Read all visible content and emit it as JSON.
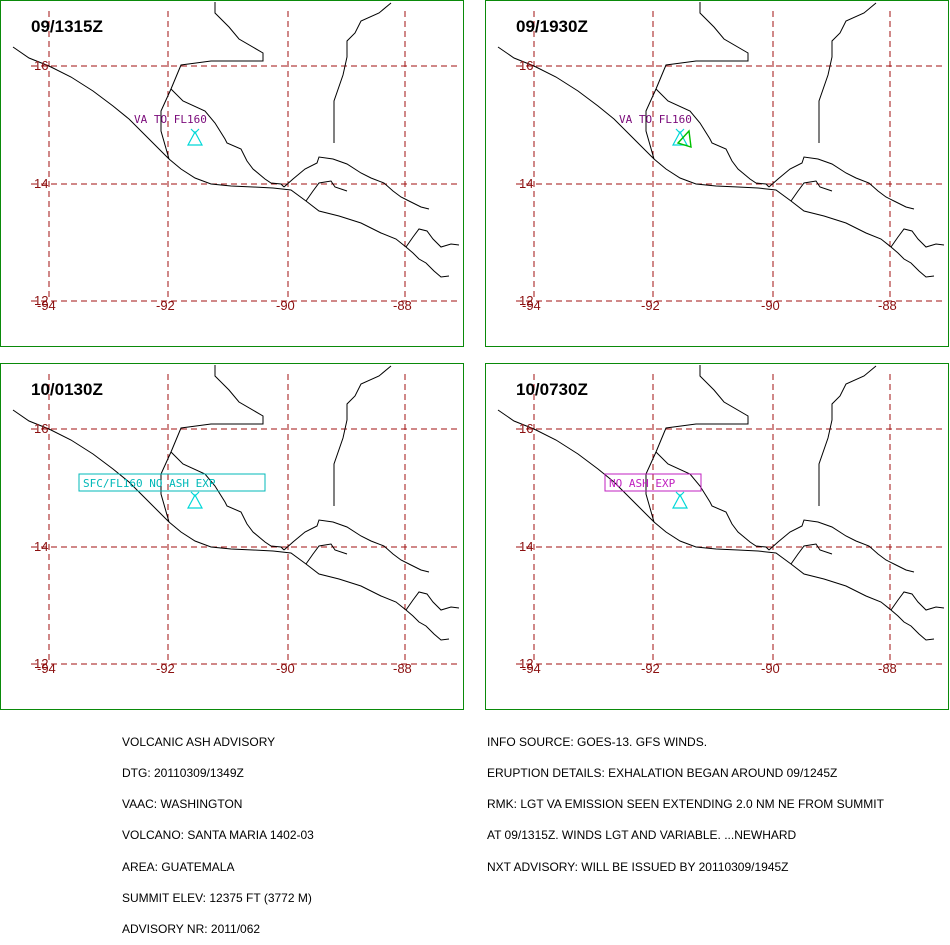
{
  "colors": {
    "frame": "#0a8a0a",
    "grid": "#a01010",
    "tick": "#8b1010",
    "coast": "#000000",
    "volcano": "#00d8d8",
    "label_purple": "#7a0a7a",
    "label_cyan": "#00b8b8",
    "label_magenta": "#c020c0",
    "ash_green": "#00c000"
  },
  "icons": {
    "volcano": "volcano-icon"
  },
  "axes": {
    "lat_labels": [
      "16",
      "14",
      "12"
    ],
    "lon_labels": [
      "-94",
      "-92",
      "-90",
      "-88"
    ]
  },
  "panels": [
    {
      "title": "09/1315Z",
      "label": "VA TO FL160",
      "label_style": "plain-purple"
    },
    {
      "title": "09/1930Z",
      "label": "VA TO FL160",
      "label_style": "plain-purple",
      "ash_polygon": true
    },
    {
      "title": "10/0130Z",
      "label": "SFC/FL160 NO ASH EXP",
      "label_style": "boxed-cyan"
    },
    {
      "title": "10/0730Z",
      "label": "NO ASH EXP",
      "label_style": "boxed-magenta"
    }
  ],
  "footer_left": [
    "VOLCANIC ASH ADVISORY",
    "DTG: 20110309/1349Z",
    "VAAC: WASHINGTON",
    "VOLCANO: SANTA MARIA 1402-03",
    "AREA: GUATEMALA",
    "SUMMIT ELEV: 12375 FT (3772 M)",
    "ADVISORY NR: 2011/062"
  ],
  "footer_right": [
    "INFO SOURCE: GOES-13. GFS WINDS.",
    "ERUPTION DETAILS: EXHALATION BEGAN AROUND 09/1245Z",
    "RMK: LGT VA EMISSION SEEN EXTENDING 2.0 NM NE FROM SUMMIT",
    "AT 09/1315Z. WINDS LGT AND VARIABLE. ...NEWHARD",
    "NXT ADVISORY: WILL BE ISSUED BY 20110309/1945Z"
  ]
}
